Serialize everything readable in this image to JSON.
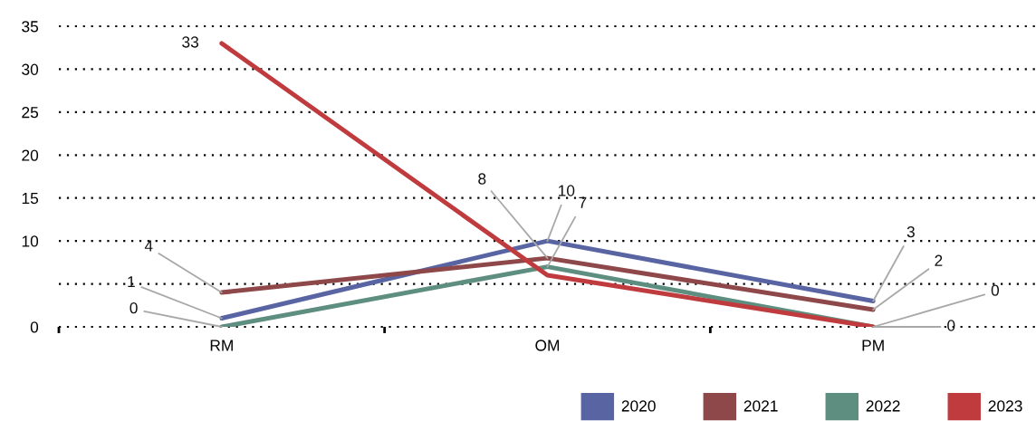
{
  "chart_data": {
    "type": "line",
    "categories": [
      "RM",
      "OM",
      "PM"
    ],
    "series": [
      {
        "name": "2020",
        "color": "#5965a3",
        "values": [
          1,
          10,
          3
        ],
        "value_labels": [
          "1",
          "10",
          "3"
        ]
      },
      {
        "name": "2021",
        "color": "#8f4849",
        "values": [
          4,
          8,
          2
        ],
        "value_labels": [
          "4",
          "8",
          "2"
        ]
      },
      {
        "name": "2022",
        "color": "#5e8e80",
        "values": [
          0,
          7,
          0
        ],
        "value_labels": [
          "0",
          "7",
          "0"
        ]
      },
      {
        "name": "2023",
        "color": "#c03b3d",
        "values": [
          33,
          6,
          0
        ],
        "value_labels": [
          "33",
          null,
          "0"
        ]
      }
    ],
    "ylim": [
      0,
      35
    ],
    "yticks": [
      0,
      {
        "value": 5,
        "label": null
      },
      10,
      15,
      20,
      25,
      30,
      35
    ],
    "grid": "y",
    "legend": "bottom right",
    "line_style": "solid"
  }
}
